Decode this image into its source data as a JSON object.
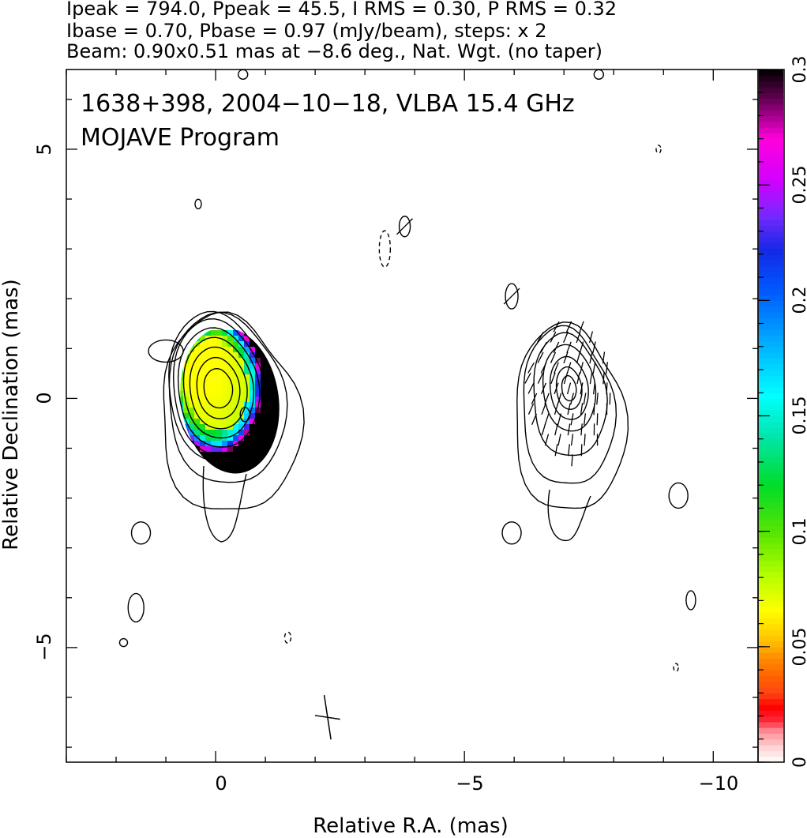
{
  "header": {
    "line1": "Ipeak = 794.0, Ppeak = 45.5, I RMS = 0.30, P RMS = 0.32",
    "line2": "Ibase = 0.70, Pbase = 0.97 (mJy/beam), steps: x 2",
    "line3": "Beam: 0.90x0.51 mas at −8.6 deg., Nat. Wgt. (no taper)"
  },
  "chart_data": {
    "type": "heatmap",
    "title": "1638+398, 2004−10−18, VLBA 15.4 GHz",
    "subtitle": "MOJAVE Program",
    "xlabel": "Relative R.A. (mas)",
    "ylabel": "Relative Declination (mas)",
    "xlim": [
      3.0,
      -10.9
    ],
    "ylim": [
      -7.3,
      6.6
    ],
    "x_ticks": [
      0,
      -5,
      -10
    ],
    "x_tick_labels": [
      "0",
      "−5",
      "−10"
    ],
    "y_ticks": [
      5,
      0,
      -5
    ],
    "y_tick_labels": [
      "5",
      "0",
      "−5"
    ],
    "colorbar": {
      "range": [
        0,
        0.3
      ],
      "ticks": [
        0,
        0.05,
        0.1,
        0.15,
        0.2,
        0.25,
        0.3
      ],
      "tick_labels": [
        "0",
        "0.05",
        "0.1",
        "0.15",
        "0.2",
        "0.25",
        "0.3"
      ]
    },
    "beam": {
      "major_mas": 0.9,
      "minor_mas": 0.51,
      "pa_deg": -8.6
    },
    "left_panel": {
      "center": [
        -0.05,
        0.2
      ],
      "contour_levels_mJy": [
        0.7,
        1.4,
        2.8,
        5.6,
        11.2,
        22.4,
        44.8,
        89.6,
        179.2,
        358.4
      ]
    },
    "right_panel": {
      "center": [
        -7.1,
        0.2
      ]
    }
  }
}
